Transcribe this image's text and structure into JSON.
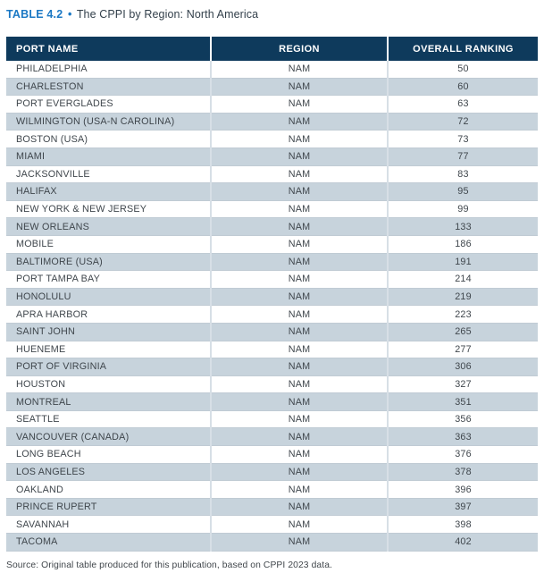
{
  "title": {
    "label": "TABLE 4.2",
    "bullet": "•",
    "text": "The CPPI by Region: North America"
  },
  "table": {
    "columns": [
      "PORT NAME",
      "REGION",
      "OVERALL RANKING"
    ],
    "rows": [
      {
        "port": "PHILADELPHIA",
        "region": "NAM",
        "ranking": "50"
      },
      {
        "port": "CHARLESTON",
        "region": "NAM",
        "ranking": "60"
      },
      {
        "port": "PORT EVERGLADES",
        "region": "NAM",
        "ranking": "63"
      },
      {
        "port": "WILMINGTON (USA-N CAROLINA)",
        "region": "NAM",
        "ranking": "72"
      },
      {
        "port": "BOSTON (USA)",
        "region": "NAM",
        "ranking": "73"
      },
      {
        "port": "MIAMI",
        "region": "NAM",
        "ranking": "77"
      },
      {
        "port": "JACKSONVILLE",
        "region": "NAM",
        "ranking": "83"
      },
      {
        "port": "HALIFAX",
        "region": "NAM",
        "ranking": "95"
      },
      {
        "port": "NEW YORK & NEW JERSEY",
        "region": "NAM",
        "ranking": "99"
      },
      {
        "port": "NEW ORLEANS",
        "region": "NAM",
        "ranking": "133"
      },
      {
        "port": "MOBILE",
        "region": "NAM",
        "ranking": "186"
      },
      {
        "port": "BALTIMORE (USA)",
        "region": "NAM",
        "ranking": "191"
      },
      {
        "port": "PORT TAMPA BAY",
        "region": "NAM",
        "ranking": "214"
      },
      {
        "port": "HONOLULU",
        "region": "NAM",
        "ranking": "219"
      },
      {
        "port": "APRA HARBOR",
        "region": "NAM",
        "ranking": "223"
      },
      {
        "port": "SAINT JOHN",
        "region": "NAM",
        "ranking": "265"
      },
      {
        "port": "HUENEME",
        "region": "NAM",
        "ranking": "277"
      },
      {
        "port": "PORT OF VIRGINIA",
        "region": "NAM",
        "ranking": "306"
      },
      {
        "port": "HOUSTON",
        "region": "NAM",
        "ranking": "327"
      },
      {
        "port": "MONTREAL",
        "region": "NAM",
        "ranking": "351"
      },
      {
        "port": "SEATTLE",
        "region": "NAM",
        "ranking": "356"
      },
      {
        "port": "VANCOUVER (CANADA)",
        "region": "NAM",
        "ranking": "363"
      },
      {
        "port": "LONG BEACH",
        "region": "NAM",
        "ranking": "376"
      },
      {
        "port": "LOS ANGELES",
        "region": "NAM",
        "ranking": "378"
      },
      {
        "port": "OAKLAND",
        "region": "NAM",
        "ranking": "396"
      },
      {
        "port": "PRINCE RUPERT",
        "region": "NAM",
        "ranking": "397"
      },
      {
        "port": "SAVANNAH",
        "region": "NAM",
        "ranking": "398"
      },
      {
        "port": "TACOMA",
        "region": "NAM",
        "ranking": "402"
      }
    ]
  },
  "source": "Source: Original table produced for this publication, based on CPPI 2023 data.",
  "colors": {
    "header_bg": "#0E3A5C",
    "stripe_bg": "#C7D3DC",
    "accent_blue": "#1B78C4",
    "body_text": "#3F464C"
  }
}
